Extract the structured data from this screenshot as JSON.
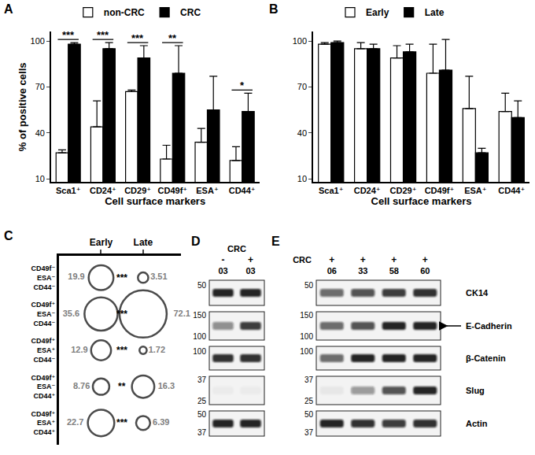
{
  "chart_data": [
    {
      "type": "bar",
      "panel_label": "A",
      "ylabel": "% of positive cells",
      "xlabel": "Cell surface markers",
      "categories": [
        "Sca1⁺",
        "CD24⁺",
        "CD29⁺",
        "CD49f⁺",
        "ESA⁺",
        "CD44⁺"
      ],
      "series": [
        {
          "name": "non-CRC",
          "color": "#ffffff",
          "values": [
            27,
            44,
            67,
            23,
            34,
            22
          ],
          "errors": [
            2,
            17,
            1,
            9,
            9,
            9
          ]
        },
        {
          "name": "CRC",
          "color": "#000000",
          "values": [
            98,
            95,
            89,
            79,
            55,
            54
          ],
          "errors": [
            1,
            4,
            8,
            18,
            22,
            12
          ]
        }
      ],
      "significance": [
        "***",
        "***",
        "***",
        "**",
        null,
        "*"
      ],
      "ylim": [
        8,
        106
      ],
      "yticks": [
        10,
        40,
        70,
        100
      ],
      "grid": false,
      "legend": "top"
    },
    {
      "type": "bar",
      "panel_label": "B",
      "xlabel": "Cell surface markers",
      "categories": [
        "Sca1⁺",
        "CD24⁺",
        "CD29⁺",
        "CD49f⁺",
        "ESA⁺",
        "CD44⁺"
      ],
      "series": [
        {
          "name": "Early",
          "color": "#ffffff",
          "values": [
            98,
            95,
            89,
            79,
            56,
            54
          ],
          "errors": [
            1,
            4,
            8,
            19,
            21,
            12
          ]
        },
        {
          "name": "Late",
          "color": "#000000",
          "values": [
            99,
            95,
            93,
            81,
            27,
            50
          ],
          "errors": [
            1,
            3,
            5,
            20,
            3,
            11
          ]
        }
      ],
      "ylim": [
        8,
        106
      ],
      "yticks": [
        10,
        40,
        70,
        100
      ],
      "grid": false,
      "legend": "top"
    },
    {
      "type": "bubble",
      "panel_label": "C",
      "categories": [
        "Early",
        "Late"
      ],
      "rows": [
        [
          "CD49f⁻",
          "ESA⁻",
          "CD44⁻"
        ],
        [
          "CD49f⁺",
          "ESA⁻",
          "CD44⁻"
        ],
        [
          "CD49f⁺",
          "ESA⁺",
          "CD44⁻"
        ],
        [
          "CD49f⁺",
          "ESA⁻",
          "CD44⁺"
        ],
        [
          "CD49f⁺",
          "ESA⁺",
          "CD44⁺"
        ]
      ],
      "values": [
        [
          19.9,
          3.51
        ],
        [
          35.6,
          72.1
        ],
        [
          12.9,
          1.72
        ],
        [
          8.76,
          16.3
        ],
        [
          22.7,
          6.39
        ]
      ],
      "significance": [
        "***",
        "***",
        "***",
        "**",
        "***"
      ],
      "data_labels": true
    }
  ],
  "blots": [
    {
      "panel_label": "D",
      "lane_header": "CRC",
      "lanes": [
        {
          "sign": "-",
          "id": "03"
        },
        {
          "sign": "+",
          "id": "03"
        }
      ],
      "rows": [
        {
          "markers": [
            50
          ],
          "intensity": [
            0.9,
            0.9
          ]
        },
        {
          "markers": [
            150,
            100
          ],
          "intensity": [
            0.45,
            0.8
          ]
        },
        {
          "markers": [
            100
          ],
          "intensity": [
            0.85,
            0.85
          ]
        },
        {
          "markers": [
            37,
            25
          ],
          "intensity": [
            0.03,
            0.03
          ]
        },
        {
          "markers": [
            50,
            37
          ],
          "intensity": [
            0.9,
            0.9
          ]
        }
      ]
    },
    {
      "panel_label": "E",
      "lane_header": "CRC",
      "lanes": [
        {
          "sign": "+",
          "id": "06"
        },
        {
          "sign": "+",
          "id": "33"
        },
        {
          "sign": "+",
          "id": "58"
        },
        {
          "sign": "+",
          "id": "60"
        }
      ],
      "rows": [
        {
          "name": "CK14",
          "markers": [
            50
          ],
          "intensity": [
            0.6,
            0.7,
            0.8,
            0.85
          ]
        },
        {
          "name": "E-Cadherin",
          "markers": [
            150,
            100
          ],
          "intensity": [
            0.6,
            0.7,
            0.9,
            0.9
          ],
          "arrow": true
        },
        {
          "name": "β-Catenin",
          "markers": [
            100
          ],
          "intensity": [
            0.6,
            0.9,
            0.9,
            0.9
          ]
        },
        {
          "name": "Slug",
          "markers": [
            37,
            25
          ],
          "intensity": [
            0.05,
            0.4,
            0.7,
            0.9
          ]
        },
        {
          "name": "Actin",
          "markers": [
            50,
            37
          ],
          "intensity": [
            0.9,
            0.85,
            0.8,
            0.85
          ]
        }
      ]
    }
  ]
}
